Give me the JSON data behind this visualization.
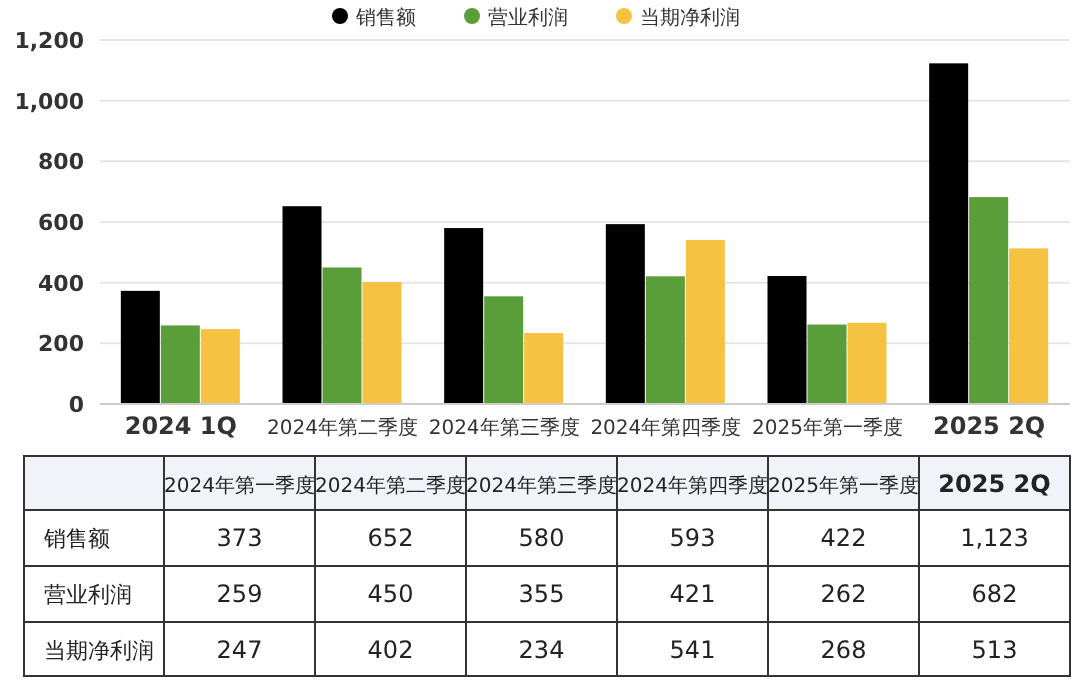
{
  "chart_data": {
    "type": "bar",
    "categories": [
      "2024 1Q",
      "2024年第二季度",
      "2024年第三季度",
      "2024年第四季度",
      "2025年第一季度",
      "2025 2Q"
    ],
    "series": [
      {
        "name": "销售额",
        "color": "#000000",
        "values": [
          373,
          652,
          580,
          593,
          422,
          1123
        ],
        "value_labels": [
          "373",
          "652",
          "580",
          "593",
          "422",
          "1,123"
        ]
      },
      {
        "name": "营业利润",
        "color": "#5a9e3a",
        "values": [
          259,
          450,
          355,
          421,
          262,
          682
        ],
        "value_labels": [
          "259",
          "450",
          "355",
          "421",
          "262",
          "682"
        ]
      },
      {
        "name": "当期净利润",
        "color": "#f5c242",
        "values": [
          247,
          402,
          234,
          541,
          268,
          513
        ],
        "value_labels": [
          "247",
          "402",
          "234",
          "541",
          "268",
          "513"
        ]
      }
    ],
    "annotations": [
      "2024年第一季度",
      "2024年第二季度",
      "2024年第三季度",
      "2024年第四季度",
      "2025年第一季度",
      "2025 2Q"
    ],
    "ylim": [
      0,
      1200
    ],
    "yticks": [
      {
        "value": 0,
        "label": "0"
      },
      {
        "value": 200,
        "label": "200"
      },
      {
        "value": 400,
        "label": "400"
      },
      {
        "value": 600,
        "label": "600"
      },
      {
        "value": 800,
        "label": "800"
      },
      {
        "value": 1000,
        "label": "1,000"
      },
      {
        "value": 1200,
        "label": "1,200"
      }
    ],
    "grid": "y",
    "legend": "top"
  }
}
